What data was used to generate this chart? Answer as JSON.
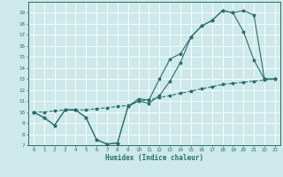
{
  "xlabel": "Humidex (Indice chaleur)",
  "xlim": [
    -0.5,
    23.5
  ],
  "ylim": [
    7,
    20
  ],
  "yticks": [
    7,
    8,
    9,
    10,
    11,
    12,
    13,
    14,
    15,
    16,
    17,
    18,
    19
  ],
  "xticks": [
    0,
    1,
    2,
    3,
    4,
    5,
    6,
    7,
    8,
    9,
    10,
    11,
    12,
    13,
    14,
    15,
    16,
    17,
    18,
    19,
    20,
    21,
    22,
    23
  ],
  "bg_color": "#cde9e9",
  "grid_color": "#ffffff",
  "line_color": "#2a6e6e",
  "line1": {
    "x": [
      0,
      1,
      2,
      3,
      4,
      5,
      6,
      7,
      8,
      9,
      10,
      11,
      12,
      13,
      14,
      15,
      16,
      17,
      18,
      19,
      20,
      21,
      22,
      23
    ],
    "y": [
      10,
      9.5,
      8.8,
      10.2,
      10.2,
      9.5,
      7.5,
      7.1,
      7.2,
      10.5,
      11.2,
      11.1,
      13.0,
      14.8,
      15.3,
      16.8,
      17.8,
      18.3,
      19.2,
      19.0,
      19.2,
      18.8,
      13.0,
      13.0
    ]
  },
  "line2": {
    "x": [
      0,
      1,
      2,
      3,
      4,
      5,
      6,
      7,
      8,
      9,
      10,
      11,
      12,
      13,
      14,
      15,
      16,
      17,
      18,
      19,
      20,
      21,
      22,
      23
    ],
    "y": [
      10,
      9.5,
      8.8,
      10.2,
      10.2,
      9.5,
      7.5,
      7.1,
      7.2,
      10.5,
      11.0,
      10.8,
      11.5,
      12.8,
      14.5,
      16.8,
      17.8,
      18.3,
      19.2,
      19.0,
      17.3,
      14.7,
      13.0,
      13.0
    ]
  },
  "line3": {
    "x": [
      0,
      1,
      2,
      3,
      4,
      5,
      6,
      7,
      8,
      9,
      10,
      11,
      12,
      13,
      14,
      15,
      16,
      17,
      18,
      19,
      20,
      21,
      22,
      23
    ],
    "y": [
      10.0,
      10.0,
      10.1,
      10.2,
      10.2,
      10.2,
      10.3,
      10.4,
      10.5,
      10.6,
      11.0,
      11.1,
      11.3,
      11.5,
      11.7,
      11.9,
      12.1,
      12.3,
      12.5,
      12.6,
      12.7,
      12.8,
      12.9,
      13.0
    ]
  }
}
